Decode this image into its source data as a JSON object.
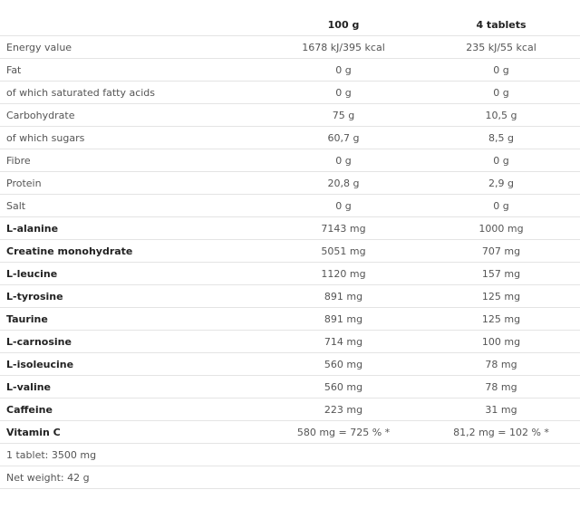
{
  "header": {
    "col1": "",
    "col2": "100 g",
    "col3": "4 tablets"
  },
  "rows": [
    {
      "label": "Energy value",
      "v100": "1678 kJ/395 kcal",
      "vserv": "235 kJ/55 kcal",
      "bold": false
    },
    {
      "label": "Fat",
      "v100": "0 g",
      "vserv": "0 g",
      "bold": false
    },
    {
      "label": "of which saturated fatty acids",
      "v100": "0 g",
      "vserv": "0 g",
      "bold": false
    },
    {
      "label": "Carbohydrate",
      "v100": "75 g",
      "vserv": "10,5 g",
      "bold": false
    },
    {
      "label": "of which sugars",
      "v100": "60,7 g",
      "vserv": "8,5 g",
      "bold": false
    },
    {
      "label": "Fibre",
      "v100": "0 g",
      "vserv": "0 g",
      "bold": false
    },
    {
      "label": "Protein",
      "v100": "20,8 g",
      "vserv": "2,9 g",
      "bold": false
    },
    {
      "label": "Salt",
      "v100": "0 g",
      "vserv": "0 g",
      "bold": false
    },
    {
      "label": "L-alanine",
      "v100": "7143 mg",
      "vserv": "1000 mg",
      "bold": true
    },
    {
      "label": "Creatine monohydrate",
      "v100": "5051 mg",
      "vserv": "707 mg",
      "bold": true
    },
    {
      "label": "L-leucine",
      "v100": "1120 mg",
      "vserv": "157 mg",
      "bold": true
    },
    {
      "label": "L-tyrosine",
      "v100": "891 mg",
      "vserv": "125 mg",
      "bold": true
    },
    {
      "label": "Taurine",
      "v100": "891 mg",
      "vserv": "125 mg",
      "bold": true
    },
    {
      "label": "L-carnosine",
      "v100": "714 mg",
      "vserv": "100 mg",
      "bold": true
    },
    {
      "label": "L-isoleucine",
      "v100": "560 mg",
      "vserv": "78 mg",
      "bold": true
    },
    {
      "label": "L-valine",
      "v100": "560 mg",
      "vserv": "78 mg",
      "bold": true
    },
    {
      "label": "Caffeine",
      "v100": "223 mg",
      "vserv": "31 mg",
      "bold": true
    },
    {
      "label": "Vitamin C",
      "v100": "580 mg = 725 % *",
      "vserv": "81,2 mg = 102 % *",
      "bold": true
    },
    {
      "label": "1 tablet: 3500 mg",
      "v100": "",
      "vserv": "",
      "bold": false
    },
    {
      "label": "Net weight: 42 g",
      "v100": "",
      "vserv": "",
      "bold": false
    }
  ]
}
